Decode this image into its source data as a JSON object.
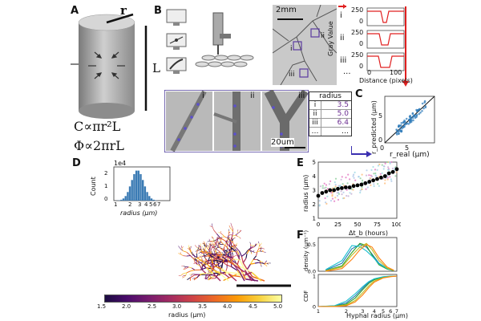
{
  "panels": {
    "A": "A",
    "B": "B",
    "C": "C",
    "D": "D",
    "E": "E",
    "F": "F"
  },
  "panelA": {
    "r_label": "r",
    "L_label": "L",
    "eq1": "C∝πr²L",
    "eq2": "Φ∝2πrL"
  },
  "panelB": {
    "scale_top": "2mm",
    "scale_bottom": "20um",
    "roman": [
      "i",
      "ii",
      "iii"
    ],
    "dots": "...",
    "ylabel": "Gray Value",
    "xlabel": "Distance (pixels)",
    "gray_ticks": [
      "0",
      "250"
    ],
    "dist_ticks": [
      "0",
      "100"
    ],
    "table_header": "radius",
    "table": [
      {
        "row": "i",
        "value": "3.5"
      },
      {
        "row": "ii",
        "value": "5.0"
      },
      {
        "row": "iii",
        "value": "6.4"
      },
      {
        "row": "…",
        "value": "…"
      }
    ]
  },
  "panelC": {
    "xlabel": "r_real (μm)",
    "ylabel": "r_predicted (μm)",
    "ticks": [
      "0",
      "5"
    ]
  },
  "panelD": {
    "inset_exp": "1e4",
    "inset_ylabel": "Count",
    "inset_xlabel": "radius (μm)",
    "inset_yticks": [
      "0",
      "1",
      "2"
    ],
    "inset_xticks": [
      "1",
      "2",
      "3",
      "4",
      "5",
      "6",
      "7"
    ],
    "colorbar_ticks": [
      "1.5",
      "2.0",
      "2.5",
      "3.0",
      "3.5",
      "4.0",
      "4.5",
      "5.0"
    ],
    "colorbar_label": "radius (μm)",
    "colors": [
      "#1b0c41",
      "#4a0c6b",
      "#781c6d",
      "#a52c60",
      "#cf4446",
      "#ed6925",
      "#fb9b06",
      "#f7d13d",
      "#fcffa4"
    ]
  },
  "chart_data": [
    {
      "type": "scatter",
      "title": "",
      "xlabel": "Δt_b (hours)",
      "ylabel": "radius (μm)",
      "xlim": [
        0,
        100
      ],
      "ylim": [
        1,
        5
      ],
      "xticks": [
        "0",
        "25",
        "50",
        "75",
        "100"
      ],
      "yticks": [
        "1",
        "2",
        "3",
        "4",
        "5"
      ],
      "series": [
        {
          "x": [
            0,
            5,
            10,
            15,
            20,
            25,
            30,
            35,
            40,
            45,
            50,
            55,
            60,
            65,
            70,
            75,
            80,
            85,
            90,
            95,
            100
          ],
          "values": [
            2.6,
            2.8,
            2.9,
            3.0,
            3.0,
            3.1,
            3.15,
            3.2,
            3.2,
            3.3,
            3.35,
            3.4,
            3.5,
            3.6,
            3.7,
            3.8,
            3.9,
            4.0,
            4.2,
            4.3,
            4.5
          ]
        }
      ]
    },
    {
      "type": "line",
      "title": "",
      "xlabel": "Hyphal radius (μm)",
      "ylabel": "density (μm⁻¹)",
      "xlim": [
        1,
        7
      ],
      "ylim": [
        0,
        0.6
      ],
      "yticks": [
        "0.0",
        "0.5"
      ],
      "series": [
        {
          "color": "#1f77b4",
          "x": [
            1.2,
            1.8,
            2.3,
            2.8,
            3.3,
            3.8,
            4.5,
            5.5,
            6.5
          ],
          "values": [
            0.02,
            0.15,
            0.42,
            0.5,
            0.45,
            0.32,
            0.15,
            0.05,
            0.01
          ]
        },
        {
          "color": "#2ca02c",
          "x": [
            1.2,
            1.8,
            2.3,
            2.8,
            3.3,
            3.8,
            4.5,
            5.5,
            6.5
          ],
          "values": [
            0.01,
            0.1,
            0.35,
            0.52,
            0.48,
            0.3,
            0.12,
            0.04,
            0.01
          ]
        },
        {
          "color": "#17becf",
          "x": [
            1.2,
            1.8,
            2.3,
            2.8,
            3.3,
            3.8,
            4.5,
            5.5,
            6.5
          ],
          "values": [
            0.03,
            0.2,
            0.48,
            0.46,
            0.38,
            0.28,
            0.14,
            0.05,
            0.01
          ]
        },
        {
          "color": "#bcbd22",
          "x": [
            1.2,
            1.8,
            2.3,
            2.8,
            3.3,
            3.8,
            4.5,
            5.5,
            6.5
          ],
          "values": [
            0.01,
            0.08,
            0.3,
            0.45,
            0.52,
            0.4,
            0.2,
            0.06,
            0.01
          ]
        },
        {
          "color": "#ff7f0e",
          "x": [
            1.2,
            1.8,
            2.3,
            2.8,
            3.3,
            3.8,
            4.5,
            5.5,
            6.5
          ],
          "values": [
            0.0,
            0.05,
            0.22,
            0.4,
            0.5,
            0.45,
            0.25,
            0.08,
            0.02
          ]
        }
      ]
    },
    {
      "type": "line",
      "title": "",
      "xlabel": "Hyphal radius (μm)",
      "ylabel": "CDF",
      "xlim": [
        1,
        7
      ],
      "ylim": [
        0,
        1
      ],
      "xticks": [
        "1",
        "2",
        "3",
        "4",
        "5",
        "6",
        "7"
      ],
      "yticks": [
        "0",
        "1"
      ],
      "series": [
        {
          "color": "#1f77b4",
          "x": [
            1,
            1.5,
            2,
            2.5,
            3,
            3.5,
            4,
            5,
            6,
            7
          ],
          "values": [
            0,
            0.02,
            0.12,
            0.35,
            0.6,
            0.8,
            0.9,
            0.97,
            0.99,
            1.0
          ]
        },
        {
          "color": "#2ca02c",
          "x": [
            1,
            1.5,
            2,
            2.5,
            3,
            3.5,
            4,
            5,
            6,
            7
          ],
          "values": [
            0,
            0.01,
            0.08,
            0.28,
            0.55,
            0.76,
            0.88,
            0.97,
            0.99,
            1.0
          ]
        },
        {
          "color": "#17becf",
          "x": [
            1,
            1.5,
            2,
            2.5,
            3,
            3.5,
            4,
            5,
            6,
            7
          ],
          "values": [
            0,
            0.03,
            0.18,
            0.42,
            0.65,
            0.82,
            0.91,
            0.98,
            1.0,
            1.0
          ]
        },
        {
          "color": "#bcbd22",
          "x": [
            1,
            1.5,
            2,
            2.5,
            3,
            3.5,
            4,
            5,
            6,
            7
          ],
          "values": [
            0,
            0.01,
            0.05,
            0.2,
            0.45,
            0.68,
            0.84,
            0.95,
            0.99,
            1.0
          ]
        },
        {
          "color": "#ff7f0e",
          "x": [
            1,
            1.5,
            2,
            2.5,
            3,
            3.5,
            4,
            5,
            6,
            7
          ],
          "values": [
            0,
            0.0,
            0.03,
            0.15,
            0.38,
            0.62,
            0.8,
            0.94,
            0.98,
            1.0
          ]
        }
      ]
    }
  ]
}
